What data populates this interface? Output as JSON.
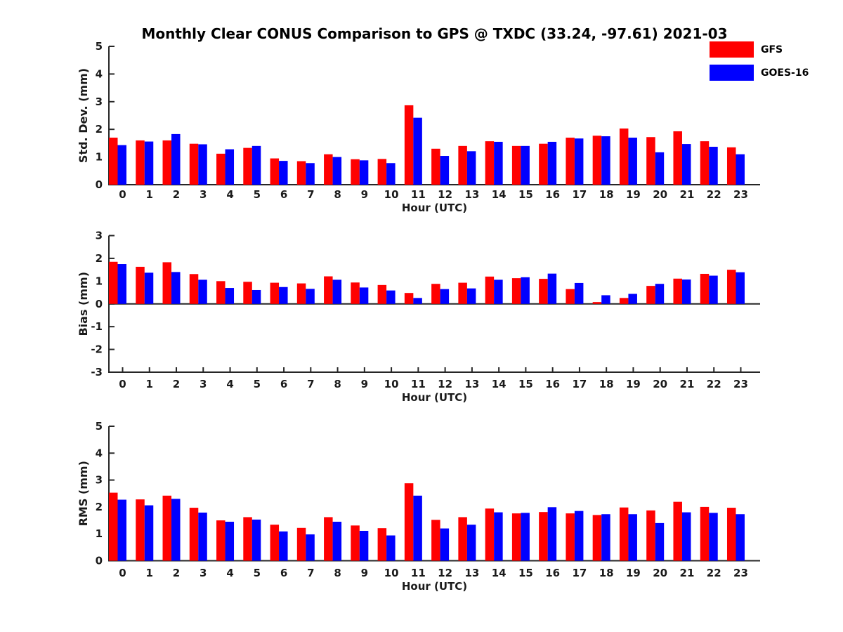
{
  "title": "Monthly Clear CONUS Comparison to GPS @ TXDC (33.24, -97.61) 2021-03",
  "legend": {
    "position": "upper right",
    "entries": [
      {
        "label": "GFS",
        "color": "#ff0000"
      },
      {
        "label": "GOES-16",
        "color": "#0000ff"
      }
    ]
  },
  "chart_data": [
    {
      "type": "bar",
      "title": "Std. Dev. subplot",
      "xlabel": "Hour (UTC)",
      "ylabel": "Std. Dev. (mm)",
      "ylim": [
        0,
        5
      ],
      "yticks": [
        0,
        1,
        2,
        3,
        4,
        5
      ],
      "grid": false,
      "categories": [
        "0",
        "1",
        "2",
        "3",
        "4",
        "5",
        "6",
        "7",
        "8",
        "9",
        "10",
        "11",
        "12",
        "13",
        "14",
        "15",
        "16",
        "17",
        "18",
        "19",
        "20",
        "21",
        "22",
        "23"
      ],
      "series": [
        {
          "name": "GFS",
          "color": "#ff0000",
          "values": [
            1.7,
            1.6,
            1.6,
            1.48,
            1.12,
            1.33,
            0.95,
            0.85,
            1.1,
            0.92,
            0.93,
            2.87,
            1.3,
            1.4,
            1.57,
            1.4,
            1.48,
            1.7,
            1.77,
            2.03,
            1.72,
            1.93,
            1.57,
            1.35
          ]
        },
        {
          "name": "GOES-16",
          "color": "#0000ff",
          "values": [
            1.43,
            1.56,
            1.83,
            1.46,
            1.28,
            1.4,
            0.86,
            0.78,
            1.0,
            0.88,
            0.78,
            2.42,
            1.04,
            1.21,
            1.55,
            1.4,
            1.55,
            1.67,
            1.75,
            1.7,
            1.17,
            1.47,
            1.37,
            1.1
          ]
        }
      ]
    },
    {
      "type": "bar",
      "title": "Bias subplot",
      "xlabel": "Hour (UTC)",
      "ylabel": "Bias (mm)",
      "ylim": [
        -3,
        3
      ],
      "yticks": [
        -3,
        -2,
        -1,
        0,
        1,
        2,
        3
      ],
      "grid": false,
      "categories": [
        "0",
        "1",
        "2",
        "3",
        "4",
        "5",
        "6",
        "7",
        "8",
        "9",
        "10",
        "11",
        "12",
        "13",
        "14",
        "15",
        "16",
        "17",
        "18",
        "19",
        "20",
        "21",
        "22",
        "23"
      ],
      "series": [
        {
          "name": "GFS",
          "color": "#ff0000",
          "values": [
            1.85,
            1.63,
            1.83,
            1.31,
            1.0,
            0.97,
            0.93,
            0.9,
            1.21,
            0.94,
            0.83,
            0.48,
            0.88,
            0.93,
            1.2,
            1.13,
            1.1,
            0.65,
            0.08,
            0.26,
            0.79,
            1.11,
            1.32,
            1.5
          ]
        },
        {
          "name": "GOES-16",
          "color": "#0000ff",
          "values": [
            1.75,
            1.37,
            1.4,
            1.06,
            0.7,
            0.61,
            0.74,
            0.66,
            1.06,
            0.72,
            0.59,
            0.26,
            0.65,
            0.68,
            1.06,
            1.17,
            1.33,
            0.92,
            0.38,
            0.44,
            0.88,
            1.07,
            1.24,
            1.39
          ]
        }
      ]
    },
    {
      "type": "bar",
      "title": "RMS subplot",
      "xlabel": "Hour (UTC)",
      "ylabel": "RMS (mm)",
      "ylim": [
        0,
        5
      ],
      "yticks": [
        0,
        1,
        2,
        3,
        4,
        5
      ],
      "grid": false,
      "categories": [
        "0",
        "1",
        "2",
        "3",
        "4",
        "5",
        "6",
        "7",
        "8",
        "9",
        "10",
        "11",
        "12",
        "13",
        "14",
        "15",
        "16",
        "17",
        "18",
        "19",
        "20",
        "21",
        "22",
        "23"
      ],
      "series": [
        {
          "name": "GFS",
          "color": "#ff0000",
          "values": [
            2.53,
            2.28,
            2.42,
            1.97,
            1.5,
            1.62,
            1.34,
            1.22,
            1.62,
            1.31,
            1.21,
            2.88,
            1.52,
            1.62,
            1.94,
            1.76,
            1.81,
            1.76,
            1.7,
            1.98,
            1.87,
            2.19,
            2.0,
            1.97
          ]
        },
        {
          "name": "GOES-16",
          "color": "#0000ff",
          "values": [
            2.27,
            2.06,
            2.3,
            1.79,
            1.45,
            1.53,
            1.09,
            0.98,
            1.45,
            1.11,
            0.94,
            2.42,
            1.2,
            1.34,
            1.8,
            1.78,
            1.99,
            1.85,
            1.73,
            1.73,
            1.4,
            1.8,
            1.78,
            1.73
          ]
        }
      ]
    }
  ]
}
